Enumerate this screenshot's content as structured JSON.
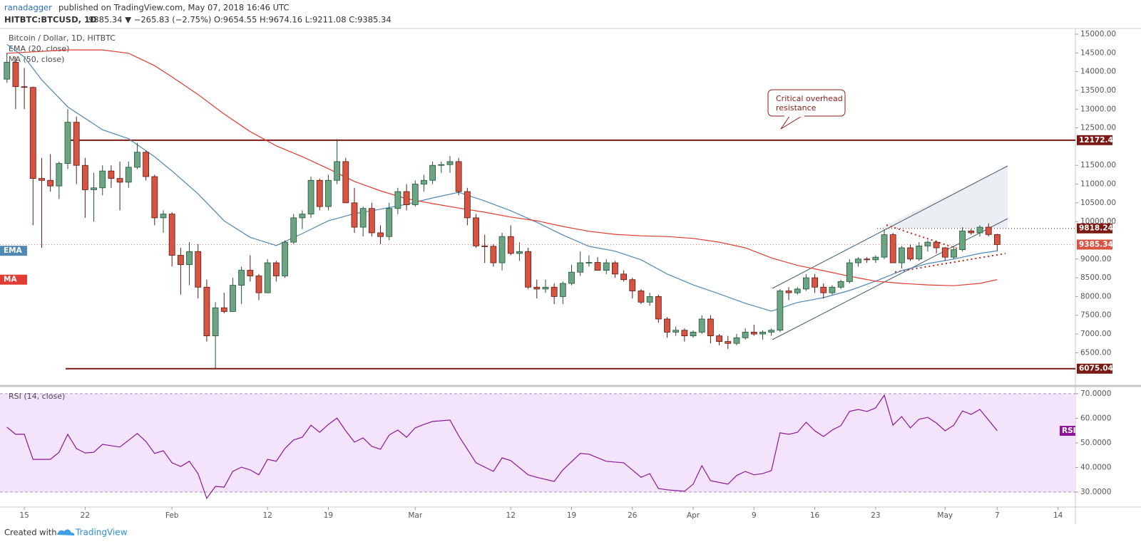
{
  "header": {
    "author": "ranadagger",
    "published": "published on TradingView.com, May 07, 2018 16:46 UTC",
    "symbol": "HITBTC:BTCUSD, 1D",
    "quote": "9385.34 ▼ −265.83 (−2.75%) O:9654.55 H:9674.16 L:9211.08 C:9385.34"
  },
  "chart_data": [
    {
      "type": "candlestick",
      "title": "Bitcoin / Dollar, 1D, HITBTC",
      "up_color": "#6ba583",
      "down_color": "#d75442",
      "x": [
        13,
        14,
        15,
        16,
        17,
        18,
        19,
        20,
        21,
        22,
        23,
        24,
        25,
        26,
        27,
        28,
        29,
        30,
        31,
        32,
        33,
        34,
        35,
        36,
        37,
        38,
        39,
        40,
        41,
        42,
        43,
        44,
        45,
        46,
        47,
        48,
        49,
        50,
        51,
        52,
        53,
        54,
        55,
        56,
        57,
        58,
        59,
        60,
        61,
        62,
        63,
        64,
        65,
        66,
        67,
        68,
        69,
        70,
        71,
        72,
        73,
        74,
        75,
        76,
        77,
        78,
        79,
        80,
        81,
        82,
        83,
        84,
        85,
        86,
        87,
        88,
        89,
        90,
        91,
        92,
        93,
        94,
        95,
        96,
        97,
        98,
        99,
        100,
        101,
        102,
        103,
        104,
        105,
        106,
        107,
        108,
        109,
        110,
        111,
        112,
        113,
        114,
        115,
        116,
        117,
        118,
        119,
        120,
        121,
        122,
        123,
        124,
        125,
        126,
        127
      ],
      "open": [
        13800,
        14250,
        13600,
        13580,
        11150,
        11100,
        10950,
        11550,
        12650,
        11500,
        10850,
        10900,
        11350,
        11150,
        11050,
        11450,
        11850,
        11200,
        10100,
        10200,
        9100,
        8850,
        9200,
        8250,
        6950,
        7700,
        7600,
        8300,
        8700,
        8550,
        8100,
        8900,
        8550,
        9450,
        10100,
        10200,
        11100,
        10400,
        11100,
        11600,
        10500,
        9850,
        10350,
        9700,
        9600,
        10350,
        10800,
        10450,
        11000,
        11100,
        11500,
        11520,
        11600,
        10800,
        10100,
        9350,
        9340,
        8900,
        9600,
        9150,
        9200,
        8250,
        8200,
        8250,
        8000,
        8350,
        8650,
        8900,
        8910,
        8700,
        8900,
        8600,
        8450,
        8150,
        7850,
        8000,
        7400,
        7050,
        7100,
        6950,
        7050,
        7400,
        6950,
        6800,
        6750,
        6900,
        7050,
        7000,
        7050,
        7100,
        8150,
        8100,
        8200,
        8500,
        8250,
        8100,
        8250,
        8400,
        8900,
        9000,
        8980,
        9050,
        9650,
        8900,
        9300,
        9000,
        9350,
        9450,
        9300,
        9050,
        9250,
        9750,
        9700,
        9850,
        9654.55
      ],
      "high": [
        14500,
        14400,
        14100,
        13600,
        11700,
        11800,
        11600,
        13000,
        12800,
        11700,
        11300,
        11500,
        11500,
        11600,
        11600,
        12100,
        11900,
        11250,
        10300,
        10250,
        9300,
        9450,
        9400,
        8450,
        7850,
        8100,
        8500,
        8800,
        9100,
        8600,
        9000,
        8950,
        9500,
        10200,
        10300,
        11200,
        11150,
        11250,
        12200,
        11700,
        10900,
        10400,
        10500,
        9900,
        10500,
        10900,
        11000,
        11100,
        11250,
        11600,
        11600,
        11750,
        11700,
        10900,
        10200,
        9650,
        9400,
        9700,
        9900,
        9450,
        9300,
        8450,
        8450,
        8350,
        8400,
        8850,
        9200,
        9100,
        9050,
        9000,
        8950,
        8700,
        8500,
        8200,
        8100,
        8050,
        7450,
        7200,
        7150,
        7100,
        7500,
        7500,
        7000,
        6950,
        7000,
        7150,
        7250,
        7100,
        7150,
        8200,
        8250,
        8250,
        8600,
        8600,
        8350,
        8300,
        8450,
        9000,
        9050,
        9050,
        9100,
        9800,
        9700,
        9350,
        9400,
        9450,
        9500,
        9500,
        9320,
        9350,
        9850,
        9800,
        9900,
        9950,
        9674.16
      ],
      "low": [
        13700,
        13000,
        13000,
        9900,
        9300,
        10800,
        10600,
        11400,
        11000,
        10100,
        10000,
        10700,
        10900,
        10300,
        10900,
        11400,
        11100,
        9900,
        9700,
        8800,
        8050,
        8300,
        7950,
        6800,
        6075.04,
        7550,
        7600,
        7800,
        8400,
        7900,
        8100,
        8400,
        8500,
        9400,
        9800,
        10100,
        10300,
        10300,
        11000,
        10500,
        9700,
        9600,
        9600,
        9400,
        9500,
        10200,
        10300,
        10400,
        10800,
        11000,
        11300,
        11300,
        10700,
        9900,
        9300,
        8900,
        8800,
        8700,
        9100,
        8950,
        8200,
        7950,
        8100,
        7800,
        7800,
        8300,
        8550,
        8800,
        8700,
        8600,
        8500,
        8400,
        7950,
        7800,
        7750,
        7300,
        6900,
        6950,
        6800,
        6900,
        7000,
        6750,
        6700,
        6600,
        6700,
        6850,
        6950,
        6850,
        6950,
        7050,
        7900,
        8050,
        8150,
        8100,
        7950,
        8050,
        8200,
        8350,
        8800,
        8900,
        8900,
        9000,
        8900,
        8750,
        8950,
        8950,
        9200,
        9150,
        8950,
        9000,
        9200,
        9650,
        9600,
        9600,
        9211.08
      ],
      "close": [
        14250,
        13600,
        13580,
        11150,
        11100,
        10950,
        11550,
        12650,
        11500,
        10850,
        10900,
        11350,
        11150,
        11050,
        11450,
        11850,
        11200,
        10100,
        10200,
        9100,
        8850,
        9200,
        8250,
        6950,
        7700,
        7600,
        8300,
        8700,
        8550,
        8100,
        8900,
        8550,
        9450,
        10100,
        10200,
        11100,
        10400,
        11100,
        11600,
        10500,
        9850,
        10350,
        9700,
        9600,
        10350,
        10800,
        10450,
        11000,
        11100,
        11500,
        11520,
        11600,
        10800,
        10100,
        9350,
        9340,
        8900,
        9600,
        9150,
        9200,
        8250,
        8200,
        8250,
        8000,
        8350,
        8650,
        8900,
        8910,
        8700,
        8900,
        8600,
        8450,
        8150,
        7850,
        8000,
        7400,
        7050,
        7100,
        6950,
        7050,
        7400,
        6950,
        6800,
        6750,
        6900,
        7050,
        7000,
        7050,
        7100,
        8150,
        8100,
        8200,
        8500,
        8250,
        8100,
        8250,
        8400,
        8900,
        9000,
        8980,
        9050,
        9650,
        8900,
        9300,
        9000,
        9350,
        9450,
        9300,
        9050,
        9250,
        9750,
        9700,
        9850,
        9654.55,
        9385.34
      ],
      "series": [
        {
          "name": "EMA (20, close)",
          "tag": "EMA",
          "color": "#4f87b5",
          "x": [
            13,
            15,
            17,
            20,
            24,
            27,
            30,
            32,
            35,
            38,
            41,
            44,
            47,
            50,
            53,
            56,
            59,
            62,
            65,
            68,
            71,
            74,
            77,
            80,
            83,
            86,
            89,
            92,
            95,
            98,
            101,
            104,
            107,
            110,
            113,
            116,
            119,
            122,
            125,
            127
          ],
          "values": [
            14730,
            14390,
            13780,
            13060,
            12450,
            12210,
            11730,
            11350,
            10740,
            10020,
            9580,
            9360,
            9680,
            10020,
            10210,
            10330,
            10460,
            10630,
            10780,
            10550,
            10290,
            9980,
            9640,
            9340,
            9210,
            8980,
            8600,
            8310,
            8070,
            7820,
            7610,
            7840,
            7970,
            8160,
            8410,
            8690,
            8880,
            9000,
            9150,
            9220
          ]
        },
        {
          "name": "MA (50, close)",
          "tag": "MA",
          "color": "#e03c31",
          "x": [
            13,
            17,
            20,
            24,
            27,
            30,
            32,
            35,
            38,
            41,
            44,
            47,
            50,
            53,
            56,
            59,
            62,
            65,
            68,
            71,
            74,
            77,
            80,
            83,
            86,
            89,
            92,
            95,
            98,
            101,
            104,
            107,
            110,
            113,
            116,
            119,
            122,
            125,
            127
          ],
          "values": [
            14490,
            14540,
            14580,
            14580,
            14490,
            14160,
            13860,
            13390,
            12870,
            12400,
            12020,
            11730,
            11410,
            11070,
            10820,
            10610,
            10480,
            10360,
            10250,
            10120,
            10020,
            9870,
            9740,
            9660,
            9620,
            9600,
            9550,
            9450,
            9300,
            9030,
            8830,
            8690,
            8540,
            8410,
            8350,
            8310,
            8290,
            8350,
            8450
          ]
        }
      ],
      "levels": [
        {
          "value": 12172.43,
          "style": "solid",
          "color": "#7b1a14"
        },
        {
          "value": 9818.24,
          "style": "dotted",
          "color": "#7b1a14"
        },
        {
          "value": 6075.04,
          "style": "solid",
          "color": "#7b1a14"
        }
      ],
      "annotation": [
        "Critical overhead",
        "resistance"
      ],
      "xlim": [
        12.2,
        136
      ],
      "xticks": [
        15,
        22,
        {
          "value": 32,
          "label": "Feb"
        },
        {
          "value": 43,
          "label": "12"
        },
        {
          "value": 50,
          "label": "19"
        },
        {
          "value": 60,
          "label": "Mar"
        },
        {
          "value": 71,
          "label": "12"
        },
        {
          "value": 78,
          "label": "19"
        },
        {
          "value": 85,
          "label": "26"
        },
        {
          "value": 92,
          "label": "Apr"
        },
        {
          "value": 99,
          "label": "9"
        },
        {
          "value": 106,
          "label": "16"
        },
        {
          "value": 113,
          "label": "23"
        },
        {
          "value": 121,
          "label": "May"
        },
        {
          "value": 127,
          "label": "7"
        },
        {
          "value": 134,
          "label": "14"
        }
      ],
      "ylim": [
        5652,
        15152
      ],
      "yticks": [
        {
          "value": 15000,
          "label": "15000.00"
        },
        {
          "value": 14500,
          "label": "14500.00"
        },
        {
          "value": 14000,
          "label": "14000.00"
        },
        {
          "value": 13500,
          "label": "13500.00"
        },
        {
          "value": 13000,
          "label": "13000.00"
        },
        {
          "value": 12500,
          "label": "12500.00"
        },
        {
          "value": 11500,
          "label": "11500.00"
        },
        {
          "value": 11000,
          "label": "11000.00"
        },
        {
          "value": 10500,
          "label": "10500.00"
        },
        {
          "value": 10000,
          "label": "10000.00"
        },
        {
          "value": 9000,
          "label": "9000.00"
        },
        {
          "value": 8500,
          "label": "8500.00"
        },
        {
          "value": 8000,
          "label": "8000.00"
        },
        {
          "value": 7500,
          "label": "7500.00"
        },
        {
          "value": 7000,
          "label": "7000.00"
        },
        {
          "value": 6500,
          "label": "6500.00"
        }
      ]
    },
    {
      "type": "line",
      "title": "RSI (14, close)",
      "tag": "RSI",
      "color": "#8e1599",
      "band": [
        30,
        70
      ],
      "x": [
        13,
        14,
        15,
        16,
        18,
        19,
        20,
        21,
        22,
        23,
        24,
        26,
        28,
        29,
        30,
        31,
        32,
        33,
        34,
        35,
        36,
        37,
        38,
        39,
        40,
        41,
        42,
        43,
        44,
        45,
        46,
        47,
        48,
        49,
        50,
        51,
        52,
        53,
        54,
        55,
        56,
        57,
        58,
        59,
        60,
        61,
        62,
        64,
        65,
        67,
        69,
        70,
        71,
        73,
        74,
        76,
        77,
        79,
        80,
        82,
        84,
        86,
        87,
        88,
        89,
        90,
        91,
        92,
        93,
        94,
        96,
        97,
        98,
        99,
        100,
        101,
        102,
        103,
        104,
        105,
        106,
        107,
        108,
        109,
        110,
        111,
        112,
        113,
        114,
        115,
        116,
        117,
        118,
        119,
        120,
        121,
        122,
        123,
        124,
        125,
        126,
        127
      ],
      "values": [
        56.4,
        53.5,
        53.5,
        43.3,
        43.3,
        46.2,
        53.5,
        47.7,
        45.9,
        46.2,
        49.4,
        48.3,
        53.8,
        50.6,
        45.7,
        46.8,
        41.9,
        40.4,
        42.5,
        37.5,
        27.4,
        32.3,
        32.0,
        38.4,
        40.1,
        39.0,
        37.0,
        43.3,
        42.5,
        47.7,
        51.2,
        52.3,
        57.2,
        54.3,
        57.5,
        60.1,
        54.9,
        50.3,
        52.0,
        48.6,
        47.4,
        53.2,
        55.2,
        52.3,
        56.1,
        57.5,
        58.7,
        59.3,
        52.9,
        41.9,
        38.4,
        43.9,
        42.8,
        37.0,
        36.0,
        34.3,
        39.0,
        45.7,
        45.4,
        42.5,
        41.9,
        36.0,
        37.5,
        31.4,
        30.9,
        30.6,
        30.3,
        33.2,
        40.7,
        34.6,
        33.2,
        36.7,
        38.4,
        37.0,
        37.5,
        38.7,
        54.1,
        53.5,
        54.3,
        58.4,
        54.9,
        52.6,
        55.2,
        57.0,
        62.8,
        63.6,
        62.8,
        64.2,
        69.4,
        57.2,
        60.7,
        56.1,
        59.6,
        60.4,
        58.1,
        54.9,
        57.2,
        63.0,
        61.6,
        63.6,
        59.3,
        54.9
      ],
      "ylim": [
        23.9,
        72.3
      ],
      "yticks": [
        {
          "value": 70,
          "label": "70.0000"
        },
        {
          "value": 60,
          "label": "60.0000"
        },
        {
          "value": 50,
          "label": "50.0000"
        },
        {
          "value": 40,
          "label": "40.0000"
        },
        {
          "value": 30,
          "label": "30.0000"
        }
      ]
    }
  ],
  "footer": {
    "created": "Created with",
    "brand": "TradingView"
  }
}
